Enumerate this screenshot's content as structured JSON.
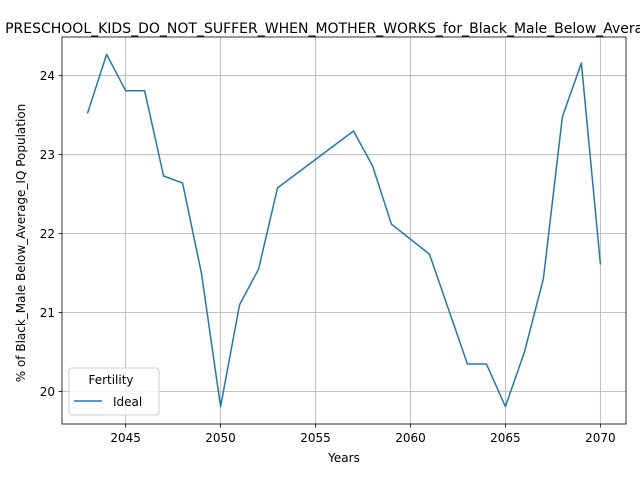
{
  "chart_data": {
    "type": "line",
    "title": "PRESCHOOL_KIDS_DO_NOT_SUFFER_WHEN_MOTHER_WORKS_for_Black_Male_Below_Average_IQ",
    "xlabel": "Years",
    "ylabel": "% of Black_Male Below_Average_IQ Population",
    "xlim": [
      2041.65,
      2071.35
    ],
    "ylim": [
      19.59,
      24.49
    ],
    "xticks": [
      2045,
      2050,
      2055,
      2060,
      2065,
      2070
    ],
    "yticks": [
      20,
      21,
      22,
      23,
      24
    ],
    "grid": true,
    "legend": {
      "title": "Fertility",
      "placement": "lower-left"
    },
    "series": [
      {
        "name": "Ideal",
        "color": "#1f77b4",
        "x": [
          2043,
          2044,
          2045,
          2046,
          2047,
          2048,
          2049,
          2050,
          2051,
          2052,
          2053,
          2057,
          2058,
          2059,
          2061,
          2063,
          2064,
          2065,
          2066,
          2067,
          2068,
          2069,
          2070
        ],
        "y": [
          23.53,
          24.27,
          23.81,
          23.81,
          22.73,
          22.64,
          21.49,
          19.81,
          21.1,
          21.55,
          22.58,
          23.3,
          22.86,
          22.12,
          21.74,
          20.35,
          20.35,
          19.81,
          20.5,
          21.43,
          23.48,
          24.16,
          21.62
        ]
      }
    ]
  }
}
